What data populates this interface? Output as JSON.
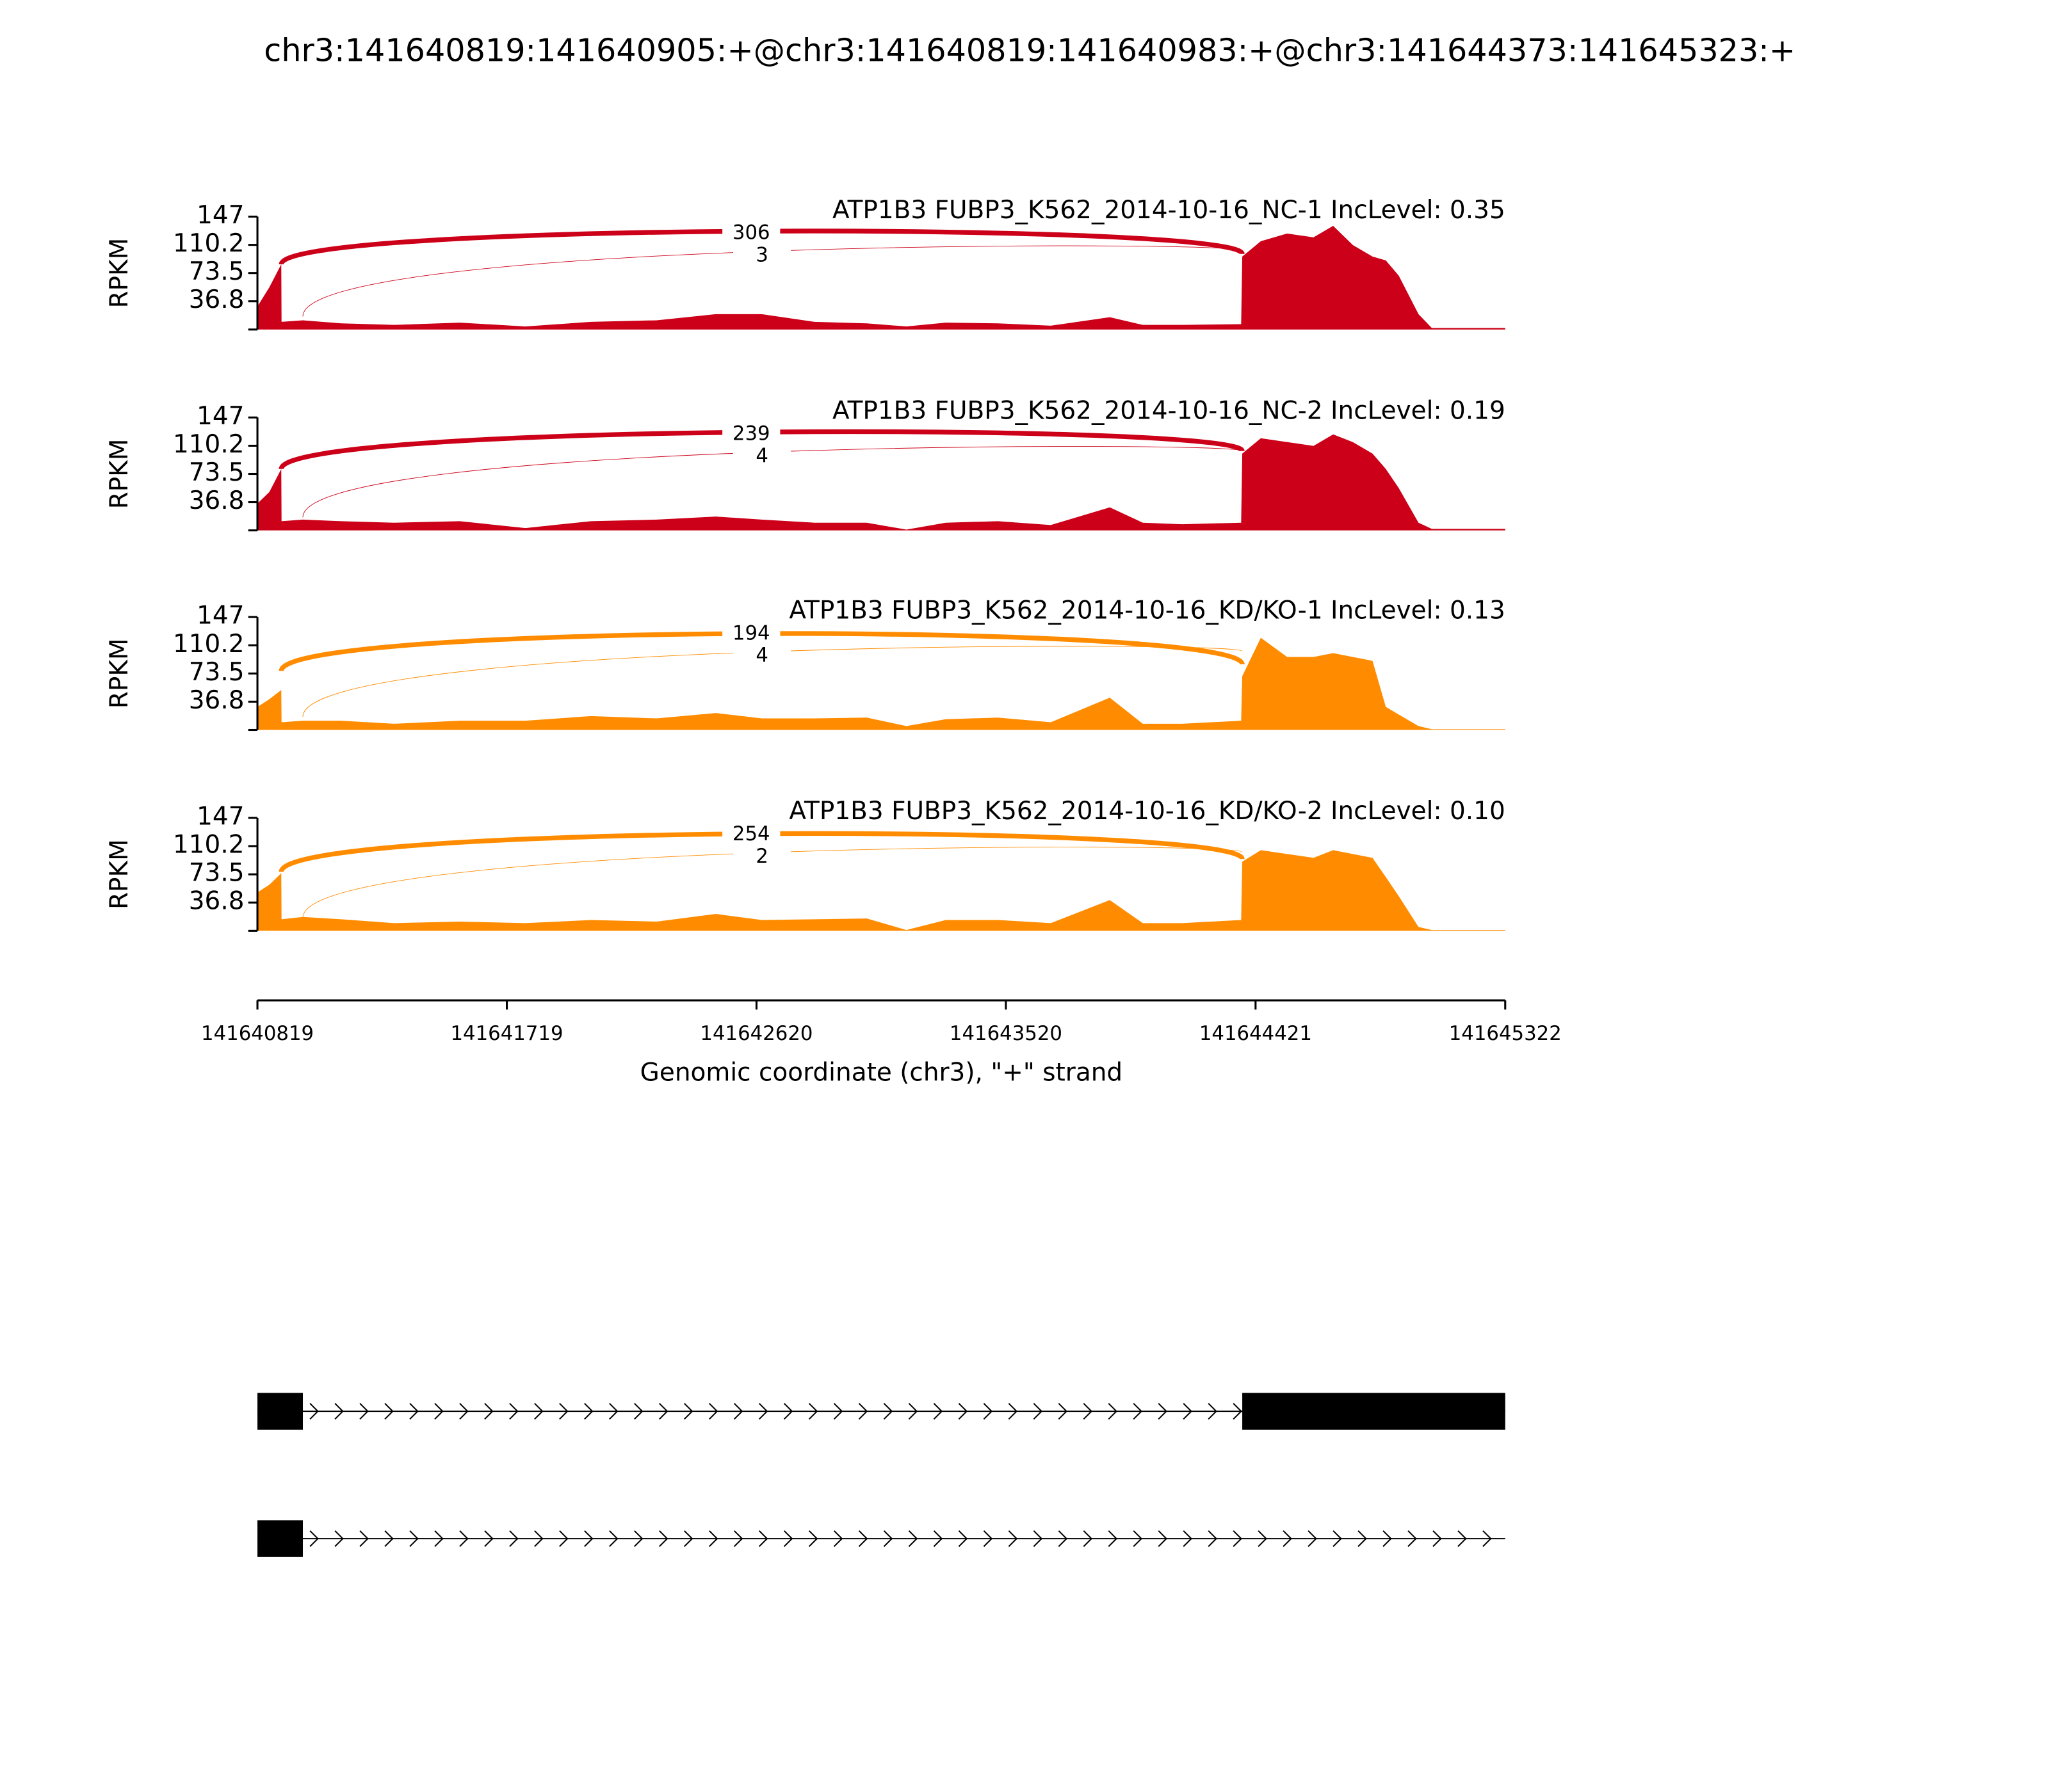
{
  "title": "chr3:141640819:141640905:+@chr3:141640819:141640983:+@chr3:141644373:141645323:+",
  "x_axis": {
    "label": "Genomic coordinate (chr3), \"+\" strand",
    "xlim": [
      141640819,
      141645322
    ],
    "xticks": [
      141640819,
      141641719,
      141642620,
      141643520,
      141644421,
      141645322
    ]
  },
  "chart_data": [
    {
      "type": "area",
      "title": "ATP1B3 FUBP3_K562_2014-10-16_NC-1 IncLevel: 0.35",
      "ylabel": "RPKM",
      "color": "#cc0018",
      "ylim": [
        0,
        147
      ],
      "yticks": [
        36.8,
        73.5,
        110.2,
        147
      ],
      "x": [
        141640819,
        141640862,
        141640905,
        141640906,
        141640983,
        141641122,
        141641312,
        141641549,
        141641786,
        141642023,
        141642260,
        141642473,
        141642639,
        141642829,
        141643018,
        141643161,
        141643303,
        141643492,
        141643682,
        141643895,
        141644014,
        141644156,
        141644369,
        141644373,
        141644440,
        141644535,
        141644630,
        141644701,
        141644772,
        141644843,
        141644891,
        141644938,
        141645009,
        141645057,
        141645322
      ],
      "values": [
        30,
        55,
        85,
        10,
        12,
        8,
        6,
        9,
        4,
        10,
        12,
        20,
        20,
        10,
        8,
        4,
        9,
        8,
        5,
        16,
        6,
        6,
        7,
        95,
        115,
        125,
        120,
        135,
        110,
        95,
        90,
        70,
        20,
        2,
        2
      ],
      "junctions": [
        {
          "from": 141640905,
          "to": 141644373,
          "count": 306
        },
        {
          "from": 141640983,
          "to": 141644373,
          "count": 3
        }
      ]
    },
    {
      "type": "area",
      "title": "ATP1B3 FUBP3_K562_2014-10-16_NC-2 IncLevel: 0.19",
      "ylabel": "RPKM",
      "color": "#cc0018",
      "ylim": [
        0,
        147
      ],
      "yticks": [
        36.8,
        73.5,
        110.2,
        147
      ],
      "x": [
        141640819,
        141640862,
        141640905,
        141640906,
        141640983,
        141641122,
        141641312,
        141641549,
        141641786,
        141642023,
        141642260,
        141642473,
        141642639,
        141642829,
        141643018,
        141643161,
        141643303,
        141643492,
        141643682,
        141643895,
        141644014,
        141644156,
        141644369,
        141644373,
        141644440,
        141644535,
        141644630,
        141644701,
        141644772,
        141644843,
        141644891,
        141644938,
        141645009,
        141645057,
        141645322
      ],
      "values": [
        35,
        50,
        80,
        12,
        14,
        12,
        10,
        12,
        3,
        12,
        14,
        18,
        14,
        10,
        10,
        1,
        10,
        12,
        7,
        30,
        10,
        8,
        10,
        100,
        120,
        115,
        110,
        125,
        115,
        100,
        80,
        55,
        10,
        2,
        2
      ],
      "junctions": [
        {
          "from": 141640905,
          "to": 141644373,
          "count": 239
        },
        {
          "from": 141640983,
          "to": 141644373,
          "count": 4
        }
      ]
    },
    {
      "type": "area",
      "title": "ATP1B3 FUBP3_K562_2014-10-16_KD/KO-1 IncLevel: 0.13",
      "ylabel": "RPKM",
      "color": "#ff8c00",
      "ylim": [
        0,
        147
      ],
      "yticks": [
        36.8,
        73.5,
        110.2,
        147
      ],
      "x": [
        141640819,
        141640862,
        141640905,
        141640906,
        141640983,
        141641122,
        141641312,
        141641549,
        141641786,
        141642023,
        141642260,
        141642473,
        141642639,
        141642829,
        141643018,
        141643161,
        141643303,
        141643492,
        141643682,
        141643895,
        141644014,
        141644156,
        141644369,
        141644373,
        141644440,
        141644535,
        141644630,
        141644701,
        141644772,
        141644843,
        141644891,
        141644938,
        141645009,
        141645057,
        141645322
      ],
      "values": [
        30,
        40,
        52,
        10,
        12,
        12,
        8,
        12,
        12,
        18,
        15,
        22,
        15,
        15,
        16,
        5,
        14,
        16,
        10,
        42,
        8,
        8,
        12,
        70,
        120,
        95,
        95,
        100,
        95,
        90,
        30,
        20,
        5,
        1,
        1
      ],
      "junctions": [
        {
          "from": 141640905,
          "to": 141644373,
          "count": 194
        },
        {
          "from": 141640983,
          "to": 141644373,
          "count": 4
        }
      ]
    },
    {
      "type": "area",
      "title": "ATP1B3 FUBP3_K562_2014-10-16_KD/KO-2 IncLevel: 0.10",
      "ylabel": "RPKM",
      "color": "#ff8c00",
      "ylim": [
        0,
        147
      ],
      "yticks": [
        36.8,
        73.5,
        110.2,
        147
      ],
      "x": [
        141640819,
        141640862,
        141640905,
        141640906,
        141640983,
        141641122,
        141641312,
        141641549,
        141641786,
        141642023,
        141642260,
        141642473,
        141642639,
        141642829,
        141643018,
        141643161,
        141643303,
        141643492,
        141643682,
        141643895,
        141644014,
        141644156,
        141644369,
        141644373,
        141644440,
        141644535,
        141644630,
        141644701,
        141644772,
        141644843,
        141644891,
        141644938,
        141645009,
        141645057,
        141645322
      ],
      "values": [
        50,
        60,
        75,
        15,
        18,
        15,
        10,
        12,
        10,
        14,
        12,
        22,
        14,
        15,
        16,
        1,
        14,
        14,
        10,
        40,
        10,
        10,
        14,
        90,
        105,
        100,
        95,
        105,
        100,
        95,
        70,
        45,
        5,
        1,
        1
      ],
      "junctions": [
        {
          "from": 141640905,
          "to": 141644373,
          "count": 254
        },
        {
          "from": 141640983,
          "to": 141644373,
          "count": 2
        }
      ]
    }
  ],
  "transcripts": [
    {
      "exons": [
        [
          141640819,
          141640983
        ],
        [
          141644373,
          141645322
        ]
      ]
    },
    {
      "exons": [
        [
          141640819,
          141640983
        ]
      ]
    }
  ]
}
